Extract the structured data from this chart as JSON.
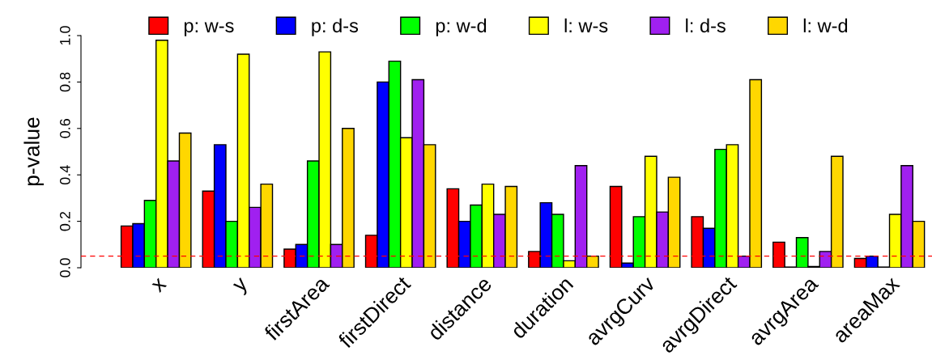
{
  "chart_data": {
    "type": "bar",
    "ylabel": "p-value",
    "categories": [
      "x",
      "y",
      "firstArea",
      "firstDirect",
      "distance",
      "duration",
      "avrgCurv",
      "avrgDirect",
      "avrgArea",
      "areaMax"
    ],
    "series": [
      {
        "name": "p: w-s",
        "color": "#ff0000",
        "values": [
          0.18,
          0.33,
          0.08,
          0.14,
          0.34,
          0.07,
          0.35,
          0.22,
          0.11,
          0.04
        ]
      },
      {
        "name": "p: d-s",
        "color": "#0000ff",
        "values": [
          0.19,
          0.53,
          0.1,
          0.8,
          0.2,
          0.28,
          0.02,
          0.17,
          0.003,
          0.05
        ]
      },
      {
        "name": "p: w-d",
        "color": "#00ff00",
        "values": [
          0.29,
          0.2,
          0.46,
          0.89,
          0.27,
          0.23,
          0.22,
          0.51,
          0.13,
          0.003
        ]
      },
      {
        "name": "l: w-s",
        "color": "#ffff00",
        "values": [
          0.98,
          0.92,
          0.93,
          0.56,
          0.36,
          0.03,
          0.48,
          0.53,
          0.005,
          0.23
        ]
      },
      {
        "name": "l: d-s",
        "color": "#a020f0",
        "values": [
          0.46,
          0.26,
          0.1,
          0.81,
          0.23,
          0.44,
          0.24,
          0.05,
          0.07,
          0.44
        ]
      },
      {
        "name": "l: w-d",
        "color": "#ffd700",
        "values": [
          0.58,
          0.36,
          0.6,
          0.53,
          0.35,
          0.05,
          0.39,
          0.81,
          0.48,
          0.2
        ]
      }
    ],
    "ylim": [
      0,
      1
    ],
    "yticks": [
      {
        "value": 0,
        "label": "0.0"
      },
      {
        "value": 0.2,
        "label": "0.2"
      },
      {
        "value": 0.4,
        "label": "0.4"
      },
      {
        "value": 0.6,
        "label": "0.6"
      },
      {
        "value": 0.8,
        "label": "0.8"
      },
      {
        "value": 1,
        "label": "1.0"
      }
    ],
    "ref_lines": [
      {
        "axis": "y",
        "value": 0.05,
        "color": "#ff0000",
        "line_style": "dashed"
      }
    ],
    "grid": false,
    "legend": "top"
  }
}
